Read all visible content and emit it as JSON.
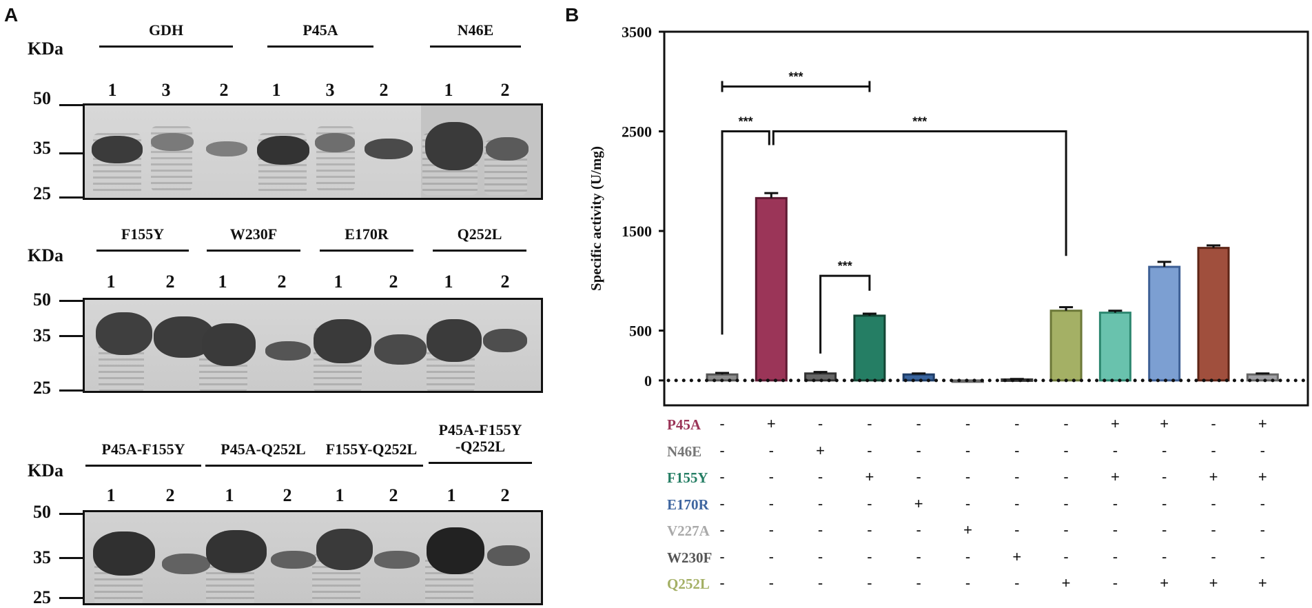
{
  "panel_a": {
    "letter": "A",
    "blocks": [
      {
        "kda_label": "KDa",
        "mw_markers": [
          "50",
          "35",
          "25"
        ],
        "groups": [
          {
            "label": "GDH",
            "lanes": [
              "1",
              "3",
              "2"
            ]
          },
          {
            "label": "P45A",
            "lanes": [
              "1",
              "3",
              "2"
            ]
          },
          {
            "label": "N46E",
            "lanes": [
              "1",
              "2"
            ]
          }
        ]
      },
      {
        "kda_label": "KDa",
        "mw_markers": [
          "50",
          "35",
          "25"
        ],
        "groups": [
          {
            "label": "F155Y",
            "lanes": [
              "1",
              "2"
            ]
          },
          {
            "label": "W230F",
            "lanes": [
              "1",
              "2"
            ]
          },
          {
            "label": "E170R",
            "lanes": [
              "1",
              "2"
            ]
          },
          {
            "label": "Q252L",
            "lanes": [
              "1",
              "2"
            ]
          }
        ]
      },
      {
        "kda_label": "KDa",
        "mw_markers": [
          "50",
          "35",
          "25"
        ],
        "groups": [
          {
            "label": "P45A-F155Y",
            "lanes": [
              "1",
              "2"
            ]
          },
          {
            "label": "P45A-Q252L",
            "lanes": [
              "1",
              "2"
            ]
          },
          {
            "label": "F155Y-Q252L",
            "lanes": [
              "1",
              "2"
            ]
          },
          {
            "label": "P45A-F155Y\n-Q252L",
            "lanes": [
              "1",
              "2"
            ]
          }
        ]
      }
    ]
  },
  "panel_b": {
    "letter": "B",
    "row_labels": [
      {
        "name": "P45A",
        "color": "#9b3558"
      },
      {
        "name": "N46E",
        "color": "#777777"
      },
      {
        "name": "F155Y",
        "color": "#257e64"
      },
      {
        "name": "E170R",
        "color": "#3f66a0"
      },
      {
        "name": "V227A",
        "color": "#a9a9a9"
      },
      {
        "name": "W230F",
        "color": "#555555"
      },
      {
        "name": "Q252L",
        "color": "#a4b065"
      }
    ],
    "mutation_matrix": [
      [
        "-",
        "+",
        "-",
        "-",
        "-",
        "-",
        "-",
        "-",
        "+",
        "+",
        "-",
        "+"
      ],
      [
        "-",
        "-",
        "+",
        "-",
        "-",
        "-",
        "-",
        "-",
        "-",
        "-",
        "-",
        "-"
      ],
      [
        "-",
        "-",
        "-",
        "+",
        "-",
        "-",
        "-",
        "-",
        "+",
        "-",
        "+",
        "+"
      ],
      [
        "-",
        "-",
        "-",
        "-",
        "+",
        "-",
        "-",
        "-",
        "-",
        "-",
        "-",
        "-"
      ],
      [
        "-",
        "-",
        "-",
        "-",
        "-",
        "+",
        "-",
        "-",
        "-",
        "-",
        "-",
        "-"
      ],
      [
        "-",
        "-",
        "-",
        "-",
        "-",
        "-",
        "+",
        "-",
        "-",
        "-",
        "-",
        "-"
      ],
      [
        "-",
        "-",
        "-",
        "-",
        "-",
        "-",
        "-",
        "+",
        "-",
        "+",
        "+",
        "+"
      ]
    ]
  },
  "chart_data": {
    "type": "bar",
    "title": "",
    "ylabel": "Specific activity (U/mg)",
    "yticks": [
      0,
      500,
      1500,
      2500,
      3500
    ],
    "ylim": [
      -250,
      3500
    ],
    "series": [
      {
        "values": [
          60,
          1830,
          70,
          650,
          60,
          -10,
          10,
          700,
          680,
          1140,
          1330,
          60
        ],
        "errors": [
          15,
          50,
          15,
          20,
          10,
          5,
          5,
          35,
          20,
          50,
          25,
          10
        ],
        "fills": [
          "#8c8c8c",
          "#9b3558",
          "#666666",
          "#257e64",
          "#3a659e",
          "#9d9d9f",
          "#606060",
          "#a4b065",
          "#69c2ad",
          "#7c9fd2",
          "#a04f3d",
          "#a0a0a4"
        ],
        "strokes": [
          "#555555",
          "#5e1a33",
          "#333333",
          "#134534",
          "#1e3c66",
          "#666666",
          "#333333",
          "#6c7838",
          "#2d8770",
          "#3d5f95",
          "#5e2416",
          "#666666"
        ]
      }
    ],
    "baseline_dotted": true,
    "annotations": [
      {
        "text": "***",
        "from_bar": 0,
        "to_bar": 3,
        "y": 2950
      },
      {
        "text": "***",
        "from_bar": 0,
        "to_bar": 1,
        "y": 2500
      },
      {
        "text": "***",
        "from_bar": 1,
        "to_bar": 7,
        "y": 2500
      },
      {
        "text": "***",
        "from_bar": 2,
        "to_bar": 3,
        "y": 1050
      }
    ]
  }
}
